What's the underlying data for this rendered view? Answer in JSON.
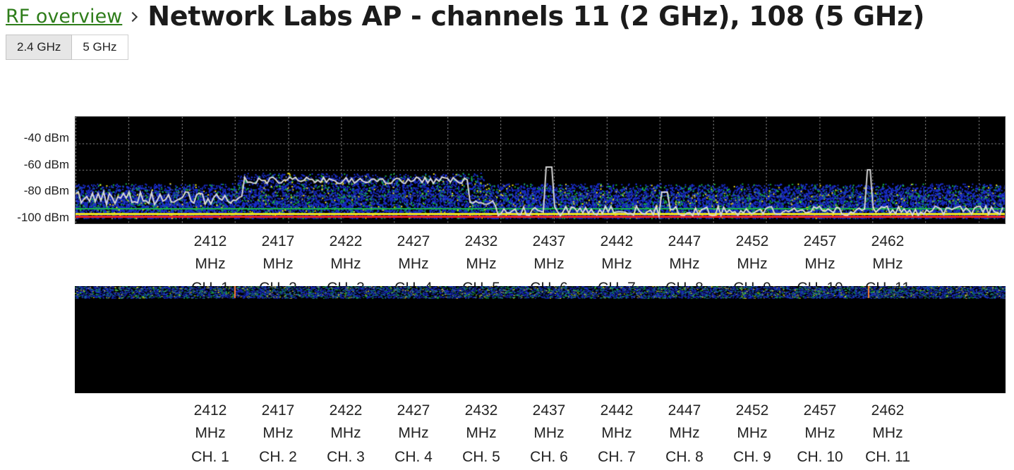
{
  "breadcrumb": {
    "link": "RF overview",
    "separator": "chevron-right-icon"
  },
  "page_title": "Network Labs AP - channels 11 (2 GHz), 108 (5 GHz)",
  "tabs": [
    {
      "label": "2.4 GHz",
      "active": true
    },
    {
      "label": "5 GHz",
      "active": false
    }
  ],
  "spectrum": {
    "y_axis_labels": [
      "-40 dBm",
      "-60 dBm",
      "-80 dBm",
      "-100 dBm"
    ],
    "frequencies": [
      {
        "mhz": "2412",
        "unit": "MHz",
        "channel": "CH. 1"
      },
      {
        "mhz": "2417",
        "unit": "MHz",
        "channel": "CH. 2"
      },
      {
        "mhz": "2422",
        "unit": "MHz",
        "channel": "CH. 3"
      },
      {
        "mhz": "2427",
        "unit": "MHz",
        "channel": "CH. 4"
      },
      {
        "mhz": "2432",
        "unit": "MHz",
        "channel": "CH. 5"
      },
      {
        "mhz": "2437",
        "unit": "MHz",
        "channel": "CH. 6"
      },
      {
        "mhz": "2442",
        "unit": "MHz",
        "channel": "CH. 7"
      },
      {
        "mhz": "2447",
        "unit": "MHz",
        "channel": "CH. 8"
      },
      {
        "mhz": "2452",
        "unit": "MHz",
        "channel": "CH. 9"
      },
      {
        "mhz": "2457",
        "unit": "MHz",
        "channel": "CH. 10"
      },
      {
        "mhz": "2462",
        "unit": "MHz",
        "channel": "CH. 11"
      }
    ],
    "colors": {
      "background": "#000000",
      "grid": "#9a9a9a",
      "trace": "#d8d8d8",
      "noise_low": "#1a2ecc",
      "noise_mid": "#18b24a",
      "noise_high": "#f2e41a",
      "floor": "#ee2222"
    }
  }
}
